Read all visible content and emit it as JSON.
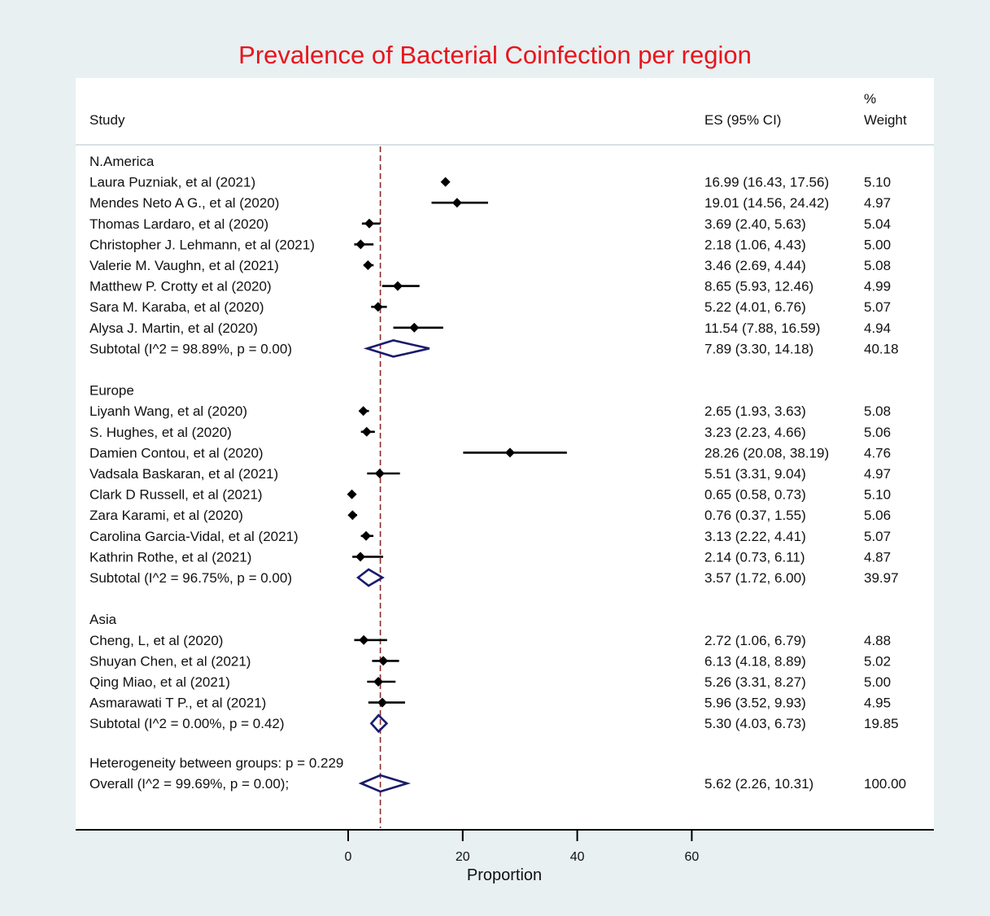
{
  "chart_data": {
    "type": "forest",
    "title": "Prevalence of Bacterial Coinfection per region",
    "xlabel": "Proportion",
    "xlim": [
      0,
      60
    ],
    "xticks": [
      0,
      20,
      40,
      60
    ],
    "reference_line": 5.62,
    "headers": {
      "study": "Study",
      "es": "ES (95% CI)",
      "weight_line1": "%",
      "weight_line2": "Weight"
    },
    "groups": [
      {
        "name": "N.America",
        "studies": [
          {
            "label": "Laura Puzniak, et al (2021)",
            "es": 16.99,
            "lo": 16.43,
            "hi": 17.56,
            "ci_text": "16.99 (16.43, 17.56)",
            "weight": "5.10"
          },
          {
            "label": "Mendes Neto A G., et al (2020)",
            "es": 19.01,
            "lo": 14.56,
            "hi": 24.42,
            "ci_text": "19.01 (14.56, 24.42)",
            "weight": "4.97"
          },
          {
            "label": "Thomas Lardaro, et al (2020)",
            "es": 3.69,
            "lo": 2.4,
            "hi": 5.63,
            "ci_text": "3.69 (2.40, 5.63)",
            "weight": "5.04"
          },
          {
            "label": "Christopher J. Lehmann, et al (2021)",
            "es": 2.18,
            "lo": 1.06,
            "hi": 4.43,
            "ci_text": "2.18 (1.06, 4.43)",
            "weight": "5.00"
          },
          {
            "label": "Valerie M. Vaughn, et al (2021)",
            "es": 3.46,
            "lo": 2.69,
            "hi": 4.44,
            "ci_text": "3.46 (2.69, 4.44)",
            "weight": "5.08"
          },
          {
            "label": "Matthew P. Crotty et al (2020)",
            "es": 8.65,
            "lo": 5.93,
            "hi": 12.46,
            "ci_text": "8.65 (5.93, 12.46)",
            "weight": "4.99"
          },
          {
            "label": "Sara M. Karaba, et al (2020)",
            "es": 5.22,
            "lo": 4.01,
            "hi": 6.76,
            "ci_text": "5.22 (4.01, 6.76)",
            "weight": "5.07"
          },
          {
            "label": "Alysa J. Martin, et al (2020)",
            "es": 11.54,
            "lo": 7.88,
            "hi": 16.59,
            "ci_text": "11.54 (7.88, 16.59)",
            "weight": "4.94"
          }
        ],
        "subtotal": {
          "label": "Subtotal  (I^2 = 98.89%, p = 0.00)",
          "es": 7.89,
          "lo": 3.3,
          "hi": 14.18,
          "ci_text": "7.89 (3.30, 14.18)",
          "weight": "40.18"
        }
      },
      {
        "name": "Europe",
        "studies": [
          {
            "label": "Liyanh Wang, et al (2020)",
            "es": 2.65,
            "lo": 1.93,
            "hi": 3.63,
            "ci_text": "2.65 (1.93, 3.63)",
            "weight": "5.08"
          },
          {
            "label": "S. Hughes, et al (2020)",
            "es": 3.23,
            "lo": 2.23,
            "hi": 4.66,
            "ci_text": "3.23 (2.23, 4.66)",
            "weight": "5.06"
          },
          {
            "label": "Damien Contou, et al (2020)",
            "es": 28.26,
            "lo": 20.08,
            "hi": 38.19,
            "ci_text": "28.26 (20.08, 38.19)",
            "weight": "4.76"
          },
          {
            "label": "Vadsala Baskaran, et al (2021)",
            "es": 5.51,
            "lo": 3.31,
            "hi": 9.04,
            "ci_text": "5.51 (3.31, 9.04)",
            "weight": "4.97"
          },
          {
            "label": "Clark D Russell, et al (2021)",
            "es": 0.65,
            "lo": 0.58,
            "hi": 0.73,
            "ci_text": "0.65 (0.58, 0.73)",
            "weight": "5.10"
          },
          {
            "label": "Zara Karami, et al (2020)",
            "es": 0.76,
            "lo": 0.37,
            "hi": 1.55,
            "ci_text": "0.76 (0.37, 1.55)",
            "weight": "5.06"
          },
          {
            "label": "Carolina Garcia-Vidal, et al (2021)",
            "es": 3.13,
            "lo": 2.22,
            "hi": 4.41,
            "ci_text": "3.13 (2.22, 4.41)",
            "weight": "5.07"
          },
          {
            "label": "Kathrin Rothe, et al (2021)",
            "es": 2.14,
            "lo": 0.73,
            "hi": 6.11,
            "ci_text": "2.14 (0.73, 6.11)",
            "weight": "4.87"
          }
        ],
        "subtotal": {
          "label": "Subtotal  (I^2 = 96.75%, p = 0.00)",
          "es": 3.57,
          "lo": 1.72,
          "hi": 6.0,
          "ci_text": "3.57 (1.72, 6.00)",
          "weight": "39.97"
        }
      },
      {
        "name": "Asia",
        "studies": [
          {
            "label": "Cheng, L, et al (2020)",
            "es": 2.72,
            "lo": 1.06,
            "hi": 6.79,
            "ci_text": "2.72 (1.06, 6.79)",
            "weight": "4.88"
          },
          {
            "label": "Shuyan Chen, et al (2021)",
            "es": 6.13,
            "lo": 4.18,
            "hi": 8.89,
            "ci_text": "6.13 (4.18, 8.89)",
            "weight": "5.02"
          },
          {
            "label": "Qing Miao, et al (2021)",
            "es": 5.26,
            "lo": 3.31,
            "hi": 8.27,
            "ci_text": "5.26 (3.31, 8.27)",
            "weight": "5.00"
          },
          {
            "label": "Asmarawati T P., et al (2021)",
            "es": 5.96,
            "lo": 3.52,
            "hi": 9.93,
            "ci_text": "5.96 (3.52, 9.93)",
            "weight": "4.95"
          }
        ],
        "subtotal": {
          "label": "Subtotal  (I^2 = 0.00%, p = 0.42)",
          "es": 5.3,
          "lo": 4.03,
          "hi": 6.73,
          "ci_text": "5.30 (4.03, 6.73)",
          "weight": "19.85"
        }
      }
    ],
    "heterogeneity_text": "Heterogeneity between groups: p = 0.229",
    "overall": {
      "label": "Overall  (I^2 = 99.69%, p = 0.00);",
      "es": 5.62,
      "lo": 2.26,
      "hi": 10.31,
      "ci_text": "5.62 (2.26, 10.31)",
      "weight": "100.00"
    },
    "colors": {
      "title": "#e8141c",
      "marker": "#000000",
      "diamond": "#1a1a6e",
      "reference_line": "#8b2a2a",
      "panel_background": "#ffffff",
      "outer_background": "#e8f0f2",
      "separator": "#c9d7dc"
    }
  }
}
